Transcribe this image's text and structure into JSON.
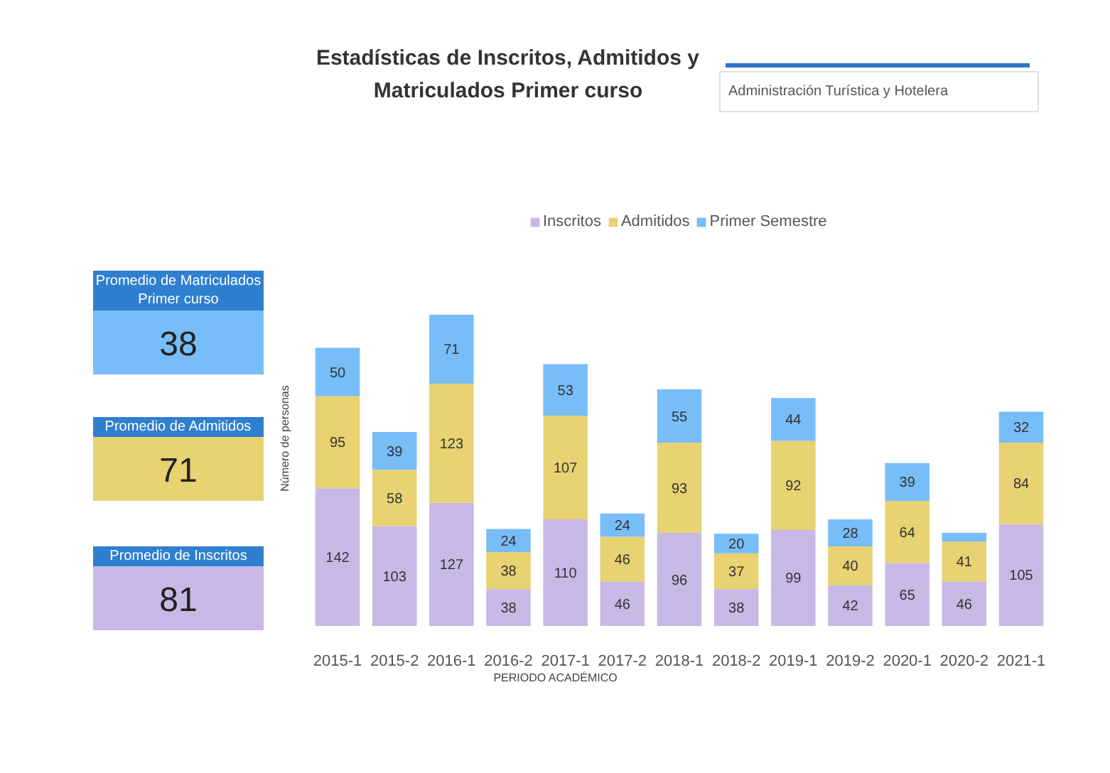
{
  "chart_data": {
    "type": "bar",
    "stacked": true,
    "title": "Estadísticas de Inscritos, Admitidos y\nMatriculados Primer curso",
    "xlabel": "PERIODO ACADÉMICO",
    "ylabel": "Número de personas",
    "legend": "top",
    "tick_labels": "x",
    "annotations": [
      "Administración Turística y Hotelera",
      "Promedio de Matriculados\nPrimer curso",
      "38",
      "Promedio de Admitidos",
      "71",
      "Promedio de Inscritos",
      "81"
    ],
    "categories": [
      "2015-1",
      "2015-2",
      "2016-1",
      "2016-2",
      "2017-1",
      "2017-2",
      "2018-1",
      "2018-2",
      "2019-1",
      "2019-2",
      "2020-1",
      "2020-2",
      "2021-1"
    ],
    "series": [
      {
        "name": "Inscritos",
        "color": "#c8b8e6",
        "values": [
          142,
          103,
          127,
          38,
          110,
          46,
          96,
          38,
          99,
          42,
          65,
          46,
          105
        ],
        "value_labels": [
          "142",
          "103",
          "127",
          "38",
          "110",
          "46",
          "96",
          "38",
          "99",
          "42",
          "65",
          "46",
          "105"
        ]
      },
      {
        "name": "Admitidos",
        "color": "#e8d272",
        "values": [
          95,
          58,
          123,
          38,
          107,
          46,
          93,
          37,
          92,
          40,
          64,
          41,
          84
        ],
        "value_labels": [
          "95",
          "58",
          "123",
          "38",
          "107",
          "46",
          "93",
          "37",
          "92",
          "40",
          "64",
          "41",
          "84"
        ]
      },
      {
        "name": "Primer Semestre",
        "color": "#77bdf8",
        "values": [
          50,
          39,
          71,
          24,
          53,
          24,
          55,
          20,
          44,
          28,
          39,
          9,
          32
        ],
        "value_labels": [
          "50",
          "39",
          "71",
          "24",
          "53",
          "24",
          "55",
          "20",
          "44",
          "28",
          "39",
          null,
          "32"
        ]
      }
    ]
  }
}
